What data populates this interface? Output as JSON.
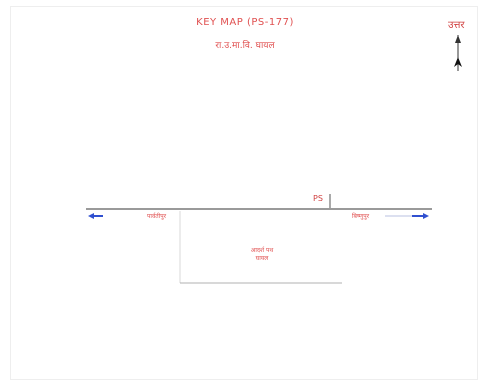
{
  "map": {
    "title": "KEY MAP (PS-177)",
    "subtitle": "रा.उ.मा.वि. घायल",
    "north_label": "उत्तर",
    "ps_marker": "PS",
    "direction_left": "पार्वतीपुर",
    "direction_right": "बिष्णुपुर",
    "plot_label_line1": "आदर्श पथ",
    "plot_label_line2": "घायल",
    "colors": {
      "road": "#9a9a9a",
      "text": "#e05050",
      "arrow": "#3050d0",
      "plot_outline": "#b0b0b0"
    }
  }
}
